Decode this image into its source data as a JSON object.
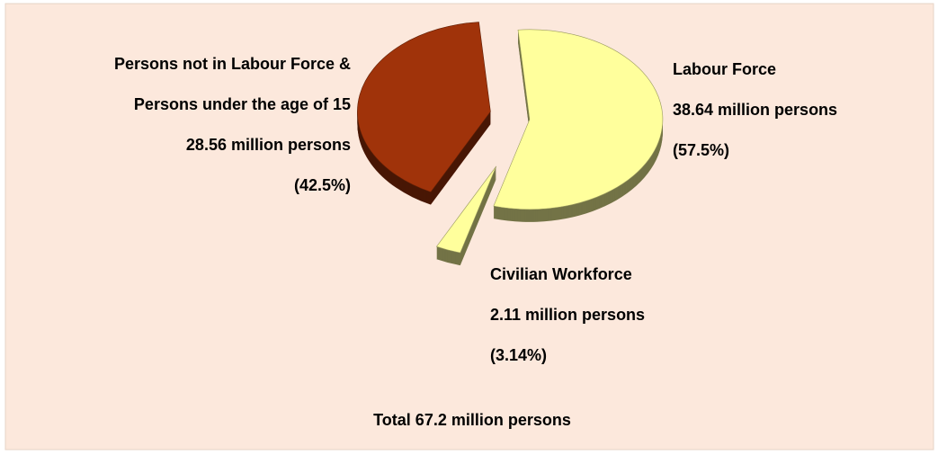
{
  "chart_data": {
    "type": "pie",
    "categories": [
      [
        "Labour Force"
      ],
      [
        "Civilian Workforce"
      ],
      [
        "Persons not in Labour Force &",
        "Persons under the age of 15"
      ]
    ],
    "values": [
      38.64,
      2.11,
      28.56
    ],
    "value_labels": [
      "38.64 million persons",
      "2.11 million persons",
      "28.56 million persons"
    ],
    "percents": [
      57.5,
      3.14,
      42.5
    ],
    "percent_labels": [
      "(57.5%)",
      "(3.14%)",
      "(42.5%)"
    ],
    "colors": [
      "#ffff9c",
      "#ffff9c",
      "#a0330a"
    ],
    "annotation": "Total 67.2 million persons"
  }
}
